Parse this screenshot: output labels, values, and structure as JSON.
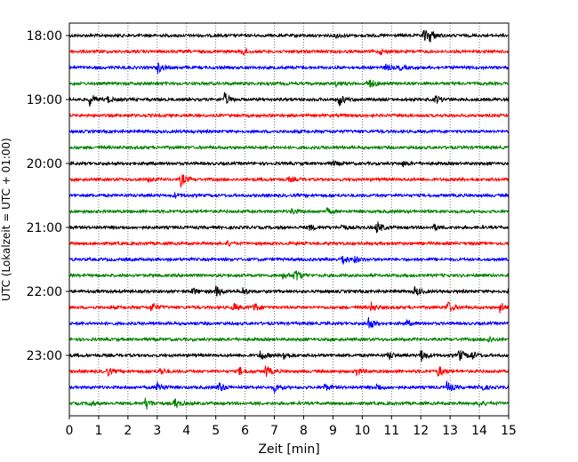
{
  "chart_data": {
    "type": "line",
    "title": "",
    "xlabel": "Zeit  [min]",
    "ylabel": "UTC (Lokalzeit = UTC + 01:00)",
    "xlim": [
      0,
      15
    ],
    "x_ticks": [
      0,
      1,
      2,
      3,
      4,
      5,
      6,
      7,
      8,
      9,
      10,
      11,
      12,
      13,
      14,
      15
    ],
    "x_tick_labels": [
      "0",
      "1",
      "2",
      "3",
      "4",
      "5",
      "6",
      "7",
      "8",
      "9",
      "10",
      "11",
      "12",
      "13",
      "14",
      "15"
    ],
    "y_ticks": [
      "18:00",
      "19:00",
      "20:00",
      "21:00",
      "22:00",
      "23:00"
    ],
    "grid": "vertical dotted",
    "color_cycle": [
      "#000000",
      "#ff0000",
      "#0000ff",
      "#008000"
    ],
    "traces": [
      {
        "start": "18:00",
        "events": [
          {
            "t": 9.1,
            "a": 0.3
          },
          {
            "t": 12.1,
            "a": 0.9
          },
          {
            "t": 12.3,
            "a": 0.8
          }
        ]
      },
      {
        "start": "18:15",
        "events": [
          {
            "t": 5.9,
            "a": 0.6
          },
          {
            "t": 10.6,
            "a": 0.3
          }
        ]
      },
      {
        "start": "18:30",
        "events": [
          {
            "t": 3.0,
            "a": 0.8
          },
          {
            "t": 10.8,
            "a": 0.4
          },
          {
            "t": 11.3,
            "a": 0.3
          }
        ]
      },
      {
        "start": "18:45",
        "events": [
          {
            "t": 9.1,
            "a": 0.3
          },
          {
            "t": 10.2,
            "a": 0.9
          }
        ]
      },
      {
        "start": "19:00",
        "events": [
          {
            "t": 0.7,
            "a": 0.9
          },
          {
            "t": 1.3,
            "a": 0.4
          },
          {
            "t": 5.3,
            "a": 0.9
          },
          {
            "t": 9.2,
            "a": 0.9
          },
          {
            "t": 12.5,
            "a": 0.6
          }
        ]
      },
      {
        "start": "19:15",
        "events": []
      },
      {
        "start": "19:30",
        "events": []
      },
      {
        "start": "19:45",
        "events": []
      },
      {
        "start": "20:00",
        "events": [
          {
            "t": 9.0,
            "a": 0.3
          },
          {
            "t": 11.4,
            "a": 0.3
          }
        ]
      },
      {
        "start": "20:15",
        "events": [
          {
            "t": 3.8,
            "a": 1.0
          },
          {
            "t": 2.7,
            "a": 0.3
          },
          {
            "t": 7.5,
            "a": 0.3
          }
        ]
      },
      {
        "start": "20:30",
        "events": [
          {
            "t": 3.6,
            "a": 0.3
          }
        ]
      },
      {
        "start": "20:45",
        "events": [
          {
            "t": 7.6,
            "a": 0.4
          },
          {
            "t": 8.8,
            "a": 0.4
          }
        ]
      },
      {
        "start": "21:00",
        "events": [
          {
            "t": 8.2,
            "a": 0.4
          },
          {
            "t": 9.3,
            "a": 0.4
          },
          {
            "t": 10.5,
            "a": 0.9
          },
          {
            "t": 12.4,
            "a": 0.5
          }
        ]
      },
      {
        "start": "21:15",
        "events": [
          {
            "t": 5.4,
            "a": 0.3
          }
        ]
      },
      {
        "start": "21:30",
        "events": [
          {
            "t": 9.3,
            "a": 0.8
          },
          {
            "t": 9.7,
            "a": 0.5
          }
        ]
      },
      {
        "start": "21:45",
        "events": [
          {
            "t": 7.7,
            "a": 1.0
          },
          {
            "t": 7.3,
            "a": 0.5
          }
        ]
      },
      {
        "start": "22:00",
        "events": [
          {
            "t": 4.2,
            "a": 0.5
          },
          {
            "t": 5.0,
            "a": 0.8
          },
          {
            "t": 5.9,
            "a": 0.6
          },
          {
            "t": 11.8,
            "a": 0.7
          },
          {
            "t": 15.0,
            "a": 0.4
          }
        ]
      },
      {
        "start": "22:15",
        "events": [
          {
            "t": 2.8,
            "a": 0.8
          },
          {
            "t": 5.6,
            "a": 0.6
          },
          {
            "t": 6.3,
            "a": 0.7
          },
          {
            "t": 10.3,
            "a": 0.7
          },
          {
            "t": 12.9,
            "a": 0.9
          },
          {
            "t": 14.7,
            "a": 0.8
          }
        ]
      },
      {
        "start": "22:30",
        "events": [
          {
            "t": 10.2,
            "a": 1.0
          },
          {
            "t": 11.5,
            "a": 0.4
          }
        ]
      },
      {
        "start": "22:45",
        "events": [
          {
            "t": 14.3,
            "a": 0.5
          }
        ]
      },
      {
        "start": "23:00",
        "events": [
          {
            "t": 6.5,
            "a": 0.8
          },
          {
            "t": 7.3,
            "a": 0.7
          },
          {
            "t": 10.9,
            "a": 0.6
          },
          {
            "t": 12.0,
            "a": 0.9
          },
          {
            "t": 13.3,
            "a": 0.9
          },
          {
            "t": 13.7,
            "a": 0.7
          }
        ]
      },
      {
        "start": "23:15",
        "events": [
          {
            "t": 1.3,
            "a": 0.6
          },
          {
            "t": 3.1,
            "a": 0.5
          },
          {
            "t": 5.8,
            "a": 0.6
          },
          {
            "t": 6.7,
            "a": 0.9
          },
          {
            "t": 9.8,
            "a": 0.6
          },
          {
            "t": 12.6,
            "a": 0.8
          }
        ]
      },
      {
        "start": "23:30",
        "events": [
          {
            "t": 3.0,
            "a": 0.9
          },
          {
            "t": 5.1,
            "a": 0.8
          },
          {
            "t": 7.0,
            "a": 0.6
          },
          {
            "t": 8.7,
            "a": 0.5
          },
          {
            "t": 10.5,
            "a": 0.5
          },
          {
            "t": 12.9,
            "a": 0.9
          },
          {
            "t": 14.0,
            "a": 0.6
          }
        ]
      },
      {
        "start": "23:45",
        "events": [
          {
            "t": 0.7,
            "a": 0.4
          },
          {
            "t": 2.6,
            "a": 0.9
          },
          {
            "t": 3.6,
            "a": 0.8
          },
          {
            "t": 14.0,
            "a": 0.4
          }
        ]
      }
    ]
  }
}
